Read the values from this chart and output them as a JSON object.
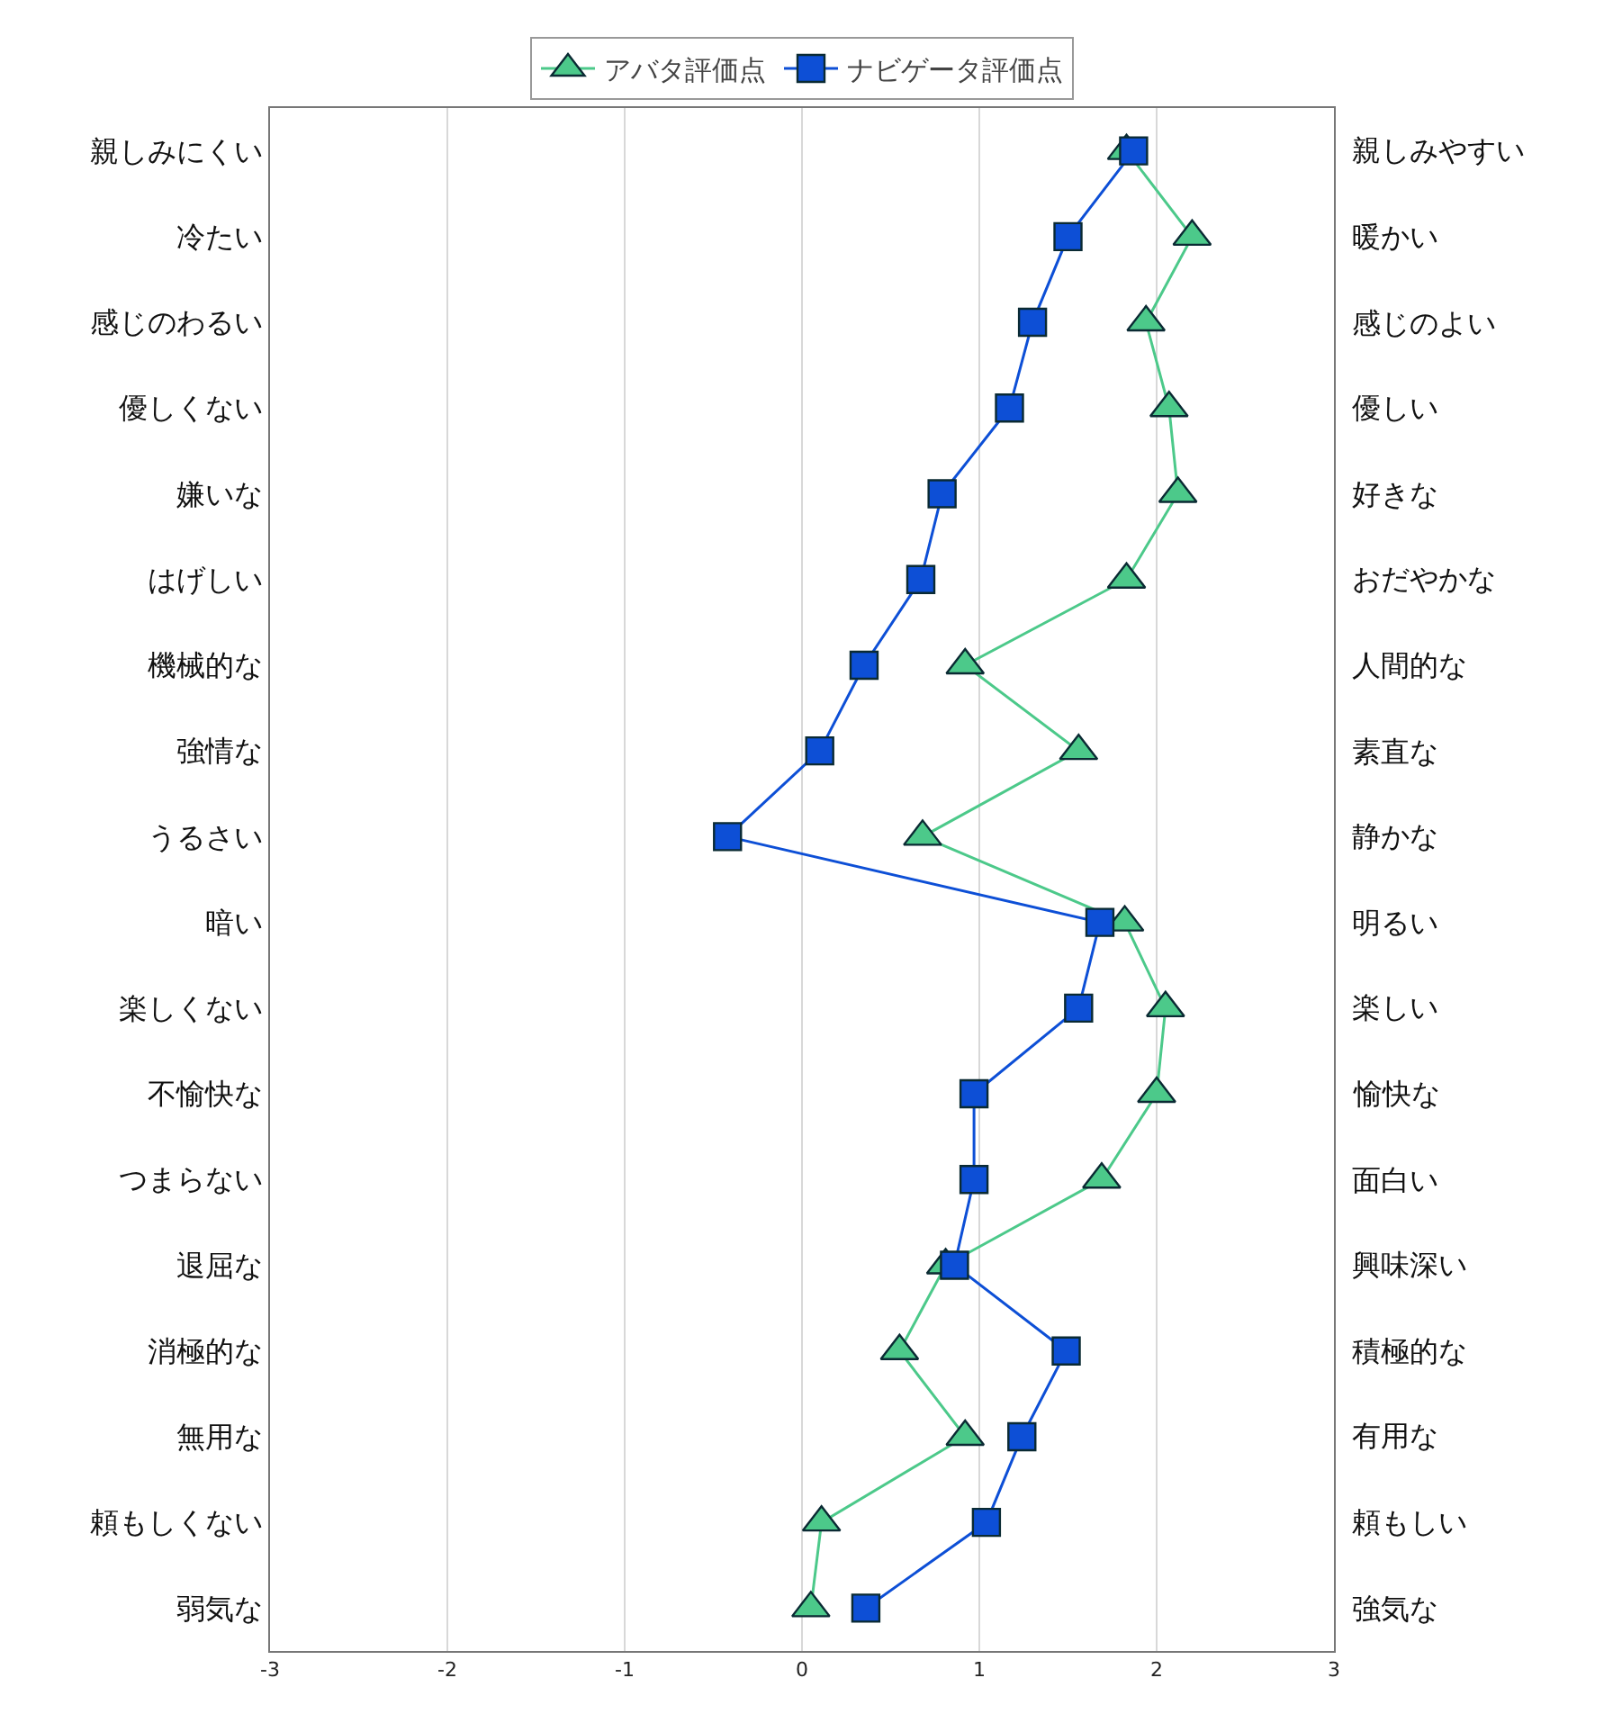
{
  "chart_data": {
    "type": "line",
    "orientation": "horizontal",
    "categories": [
      "親しみにくい",
      "冷たい",
      "感じのわるい",
      "優しくない",
      "嫌いな",
      "はげしい",
      "機械的な",
      "強情な",
      "うるさい",
      "暗い",
      "楽しくない",
      "不愉快な",
      "つまらない",
      "退屈な",
      "消極的な",
      "無用な",
      "頼もしくない",
      "弱気な"
    ],
    "y2_categories": [
      "親しみやすい",
      "暖かい",
      "感じのよい",
      "優しい",
      "好きな",
      "おだやかな",
      "人間的な",
      "素直な",
      "静かな",
      "明るい",
      "楽しい",
      "愉快な",
      "面白い",
      "興味深い",
      "積極的な",
      "有用な",
      "頼もしい",
      "強気な"
    ],
    "series": [
      {
        "name": "アバタ評価点",
        "color": "#4cc98a",
        "marker": "triangle",
        "values": [
          1.83,
          2.2,
          1.94,
          2.07,
          2.12,
          1.83,
          0.92,
          1.56,
          0.68,
          1.82,
          2.05,
          2.0,
          1.69,
          0.81,
          0.55,
          0.92,
          0.11,
          0.05
        ]
      },
      {
        "name": "ナビゲータ評価点",
        "color": "#0d4fd6",
        "marker": "square",
        "values": [
          1.87,
          1.5,
          1.3,
          1.17,
          0.79,
          0.67,
          0.35,
          0.1,
          -0.42,
          1.68,
          1.56,
          0.97,
          0.97,
          0.86,
          1.49,
          1.24,
          1.04,
          0.36
        ]
      }
    ],
    "xlim": [
      -3,
      3
    ],
    "xticks": [
      -3,
      -2,
      -1,
      0,
      1,
      2,
      3
    ],
    "grid": "x",
    "legend": "top"
  }
}
